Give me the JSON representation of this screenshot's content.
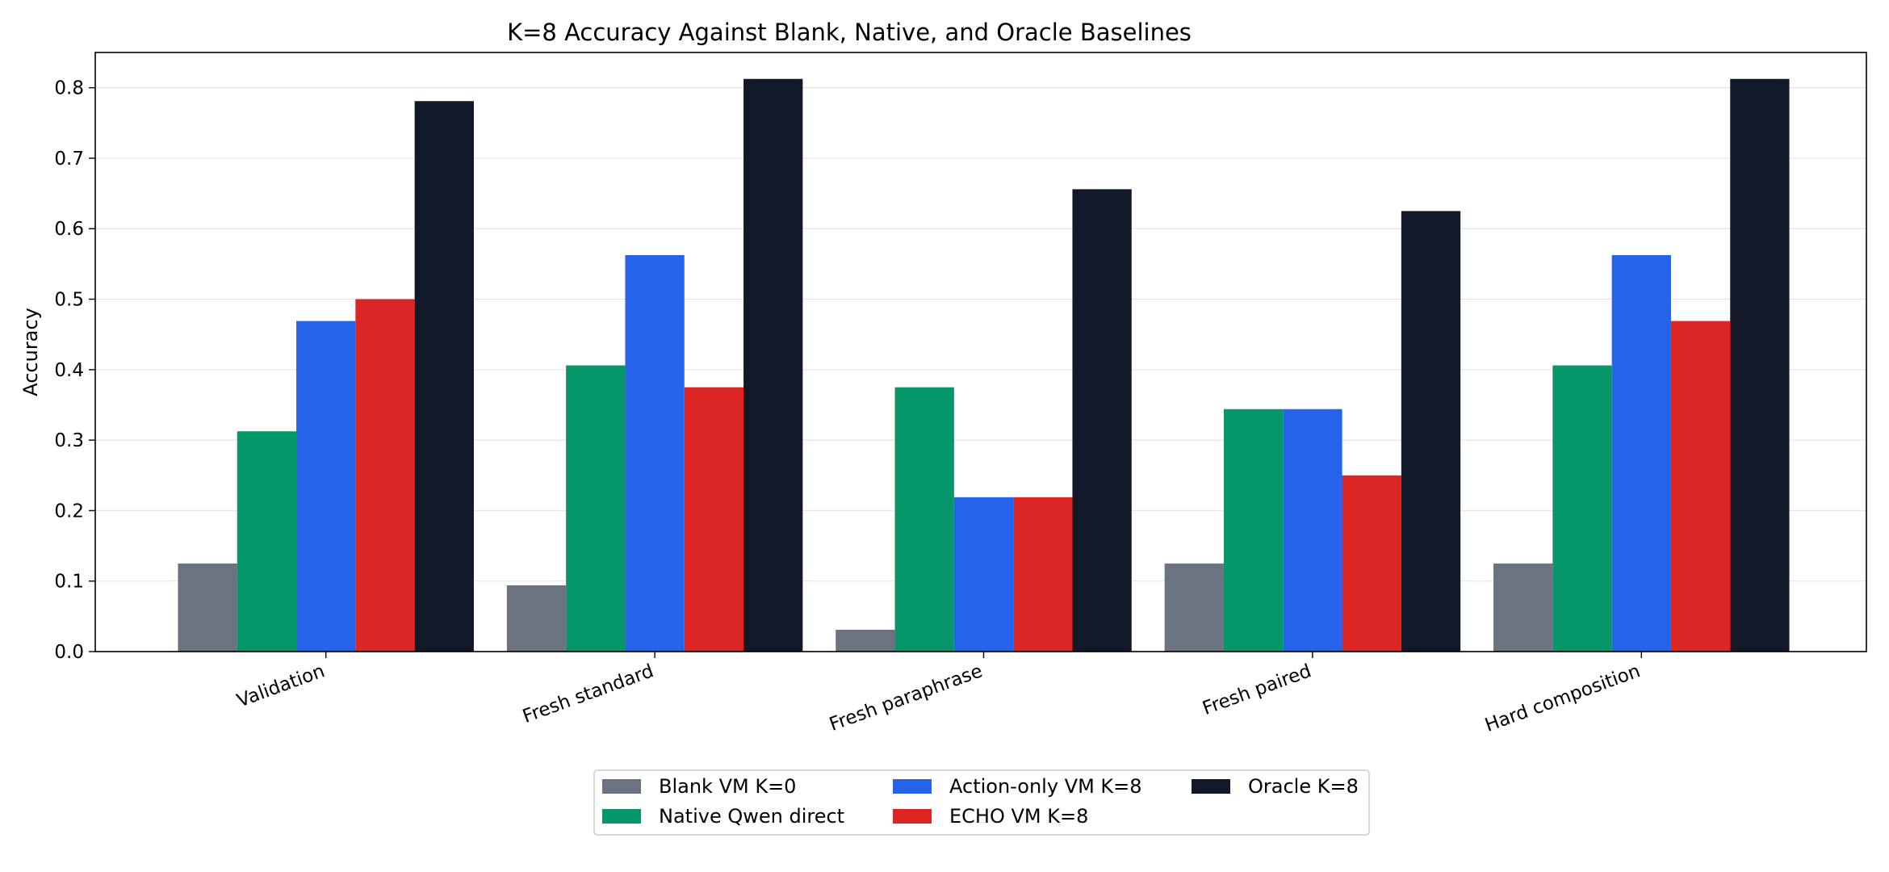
{
  "chart_data": {
    "type": "bar",
    "title": "K=8 Accuracy Against Blank, Native, and Oracle Baselines",
    "xlabel": "",
    "ylabel": "Accuracy",
    "categories": [
      "Validation",
      "Fresh standard",
      "Fresh paraphrase",
      "Fresh paired",
      "Hard composition"
    ],
    "ylim": [
      0,
      0.85
    ],
    "yticks": [
      "0.0",
      "0.1",
      "0.2",
      "0.3",
      "0.4",
      "0.5",
      "0.6",
      "0.7",
      "0.8"
    ],
    "grid": "y",
    "legend_position": "bottom-center",
    "series": [
      {
        "name": "Blank VM K=0",
        "color": "#6b7280",
        "values": [
          0.125,
          0.094,
          0.031,
          0.125,
          0.125
        ]
      },
      {
        "name": "Native Qwen direct",
        "color": "#059669",
        "values": [
          0.3125,
          0.406,
          0.375,
          0.344,
          0.406
        ]
      },
      {
        "name": "Action-only VM K=8",
        "color": "#2563eb",
        "values": [
          0.469,
          0.5625,
          0.219,
          0.344,
          0.5625
        ]
      },
      {
        "name": "ECHO VM K=8",
        "color": "#dc2626",
        "values": [
          0.5,
          0.375,
          0.219,
          0.25,
          0.469
        ]
      },
      {
        "name": "Oracle K=8",
        "color": "#111827",
        "values": [
          0.781,
          0.8125,
          0.656,
          0.625,
          0.8125
        ]
      }
    ]
  }
}
